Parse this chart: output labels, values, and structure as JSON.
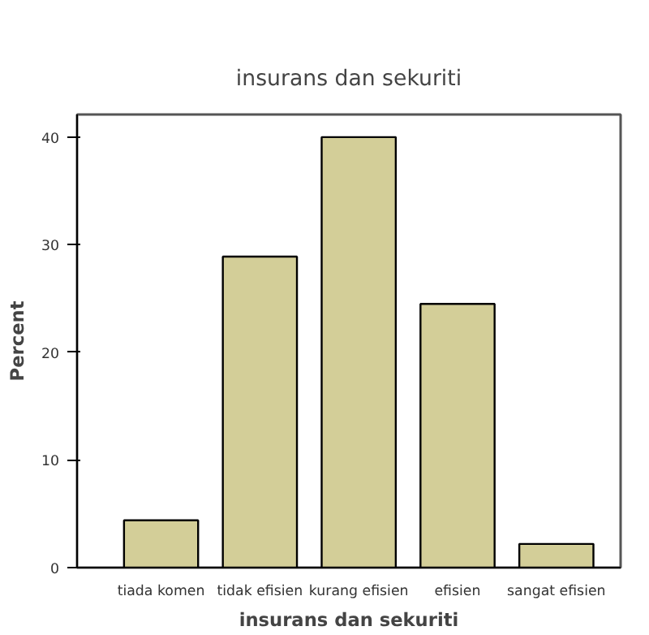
{
  "chart_data": {
    "type": "bar",
    "title": "insurans dan sekuriti",
    "xlabel": "insurans dan sekuriti",
    "ylabel": "Percent",
    "categories": [
      "tiada komen",
      "tidak efisien",
      "kurang efisien",
      "efisien",
      "sangat efisien"
    ],
    "values": [
      4.4,
      28.9,
      40.0,
      24.5,
      2.2
    ],
    "color": "#d3ce98",
    "ylim": [
      0,
      42.1
    ],
    "yticks": [
      0,
      10,
      20,
      30,
      40
    ],
    "grid": false
  }
}
